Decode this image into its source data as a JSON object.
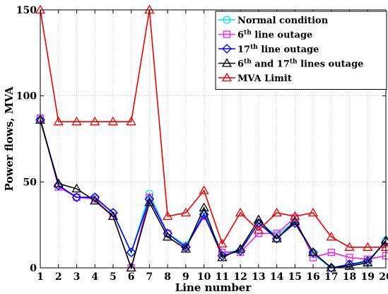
{
  "chart_data": {
    "type": "line",
    "xlabel": "Line number",
    "ylabel": "Power flows, MVA",
    "xlim": [
      1,
      20
    ],
    "ylim": [
      0,
      150
    ],
    "x_ticks": [
      1,
      2,
      3,
      4,
      5,
      6,
      7,
      8,
      9,
      10,
      11,
      12,
      13,
      14,
      15,
      16,
      17,
      18,
      19,
      20
    ],
    "y_ticks": [
      0,
      50,
      100,
      150
    ],
    "grid": true,
    "legend_position": "top-right",
    "x": [
      1,
      2,
      3,
      4,
      5,
      6,
      7,
      8,
      9,
      10,
      11,
      12,
      13,
      14,
      15,
      16,
      17,
      18,
      19,
      20
    ],
    "series": [
      {
        "name_parts": [
          {
            "t": "Normal condition"
          }
        ],
        "color": "#00e5ee",
        "marker": "circle",
        "values": [
          87,
          48,
          41,
          41,
          32,
          9,
          43,
          20,
          13,
          32,
          9,
          10,
          26,
          19,
          27,
          8,
          0,
          2,
          3,
          16
        ]
      },
      {
        "name_parts": [
          {
            "t": "6"
          },
          {
            "t": "th",
            "sup": true
          },
          {
            "t": " line outage"
          }
        ],
        "color": "#ee22ee",
        "marker": "square",
        "values": [
          87,
          47,
          41,
          40,
          30,
          0,
          41,
          20,
          12,
          30,
          9,
          9,
          20,
          20,
          29,
          6,
          9,
          6,
          5,
          7
        ]
      },
      {
        "name_parts": [
          {
            "t": "17"
          },
          {
            "t": "th",
            "sup": true
          },
          {
            "t": " line outage"
          }
        ],
        "color": "#0000ee",
        "marker": "diamond",
        "values": [
          86,
          48,
          41,
          41,
          32,
          9,
          40,
          20,
          12,
          31,
          7,
          10,
          26,
          17,
          26,
          9,
          0,
          2,
          4,
          15
        ]
      },
      {
        "name_parts": [
          {
            "t": "6"
          },
          {
            "t": "th",
            "sup": true
          },
          {
            "t": " and 17"
          },
          {
            "t": "th",
            "sup": true
          },
          {
            "t": " lines outage"
          }
        ],
        "color": "#000000",
        "marker": "triangle",
        "values": [
          86,
          49,
          46,
          39,
          30,
          0,
          38,
          18,
          11,
          35,
          6,
          11,
          28,
          17,
          27,
          9,
          0,
          1,
          3,
          16
        ]
      },
      {
        "name_parts": [
          {
            "t": "MVA Limit"
          }
        ],
        "color": "#ee0000",
        "marker": "triangle",
        "values": [
          150,
          85,
          85,
          85,
          85,
          85,
          150,
          30,
          32,
          45,
          14,
          32,
          22,
          32,
          30,
          32,
          18,
          12,
          12,
          12
        ]
      }
    ]
  }
}
